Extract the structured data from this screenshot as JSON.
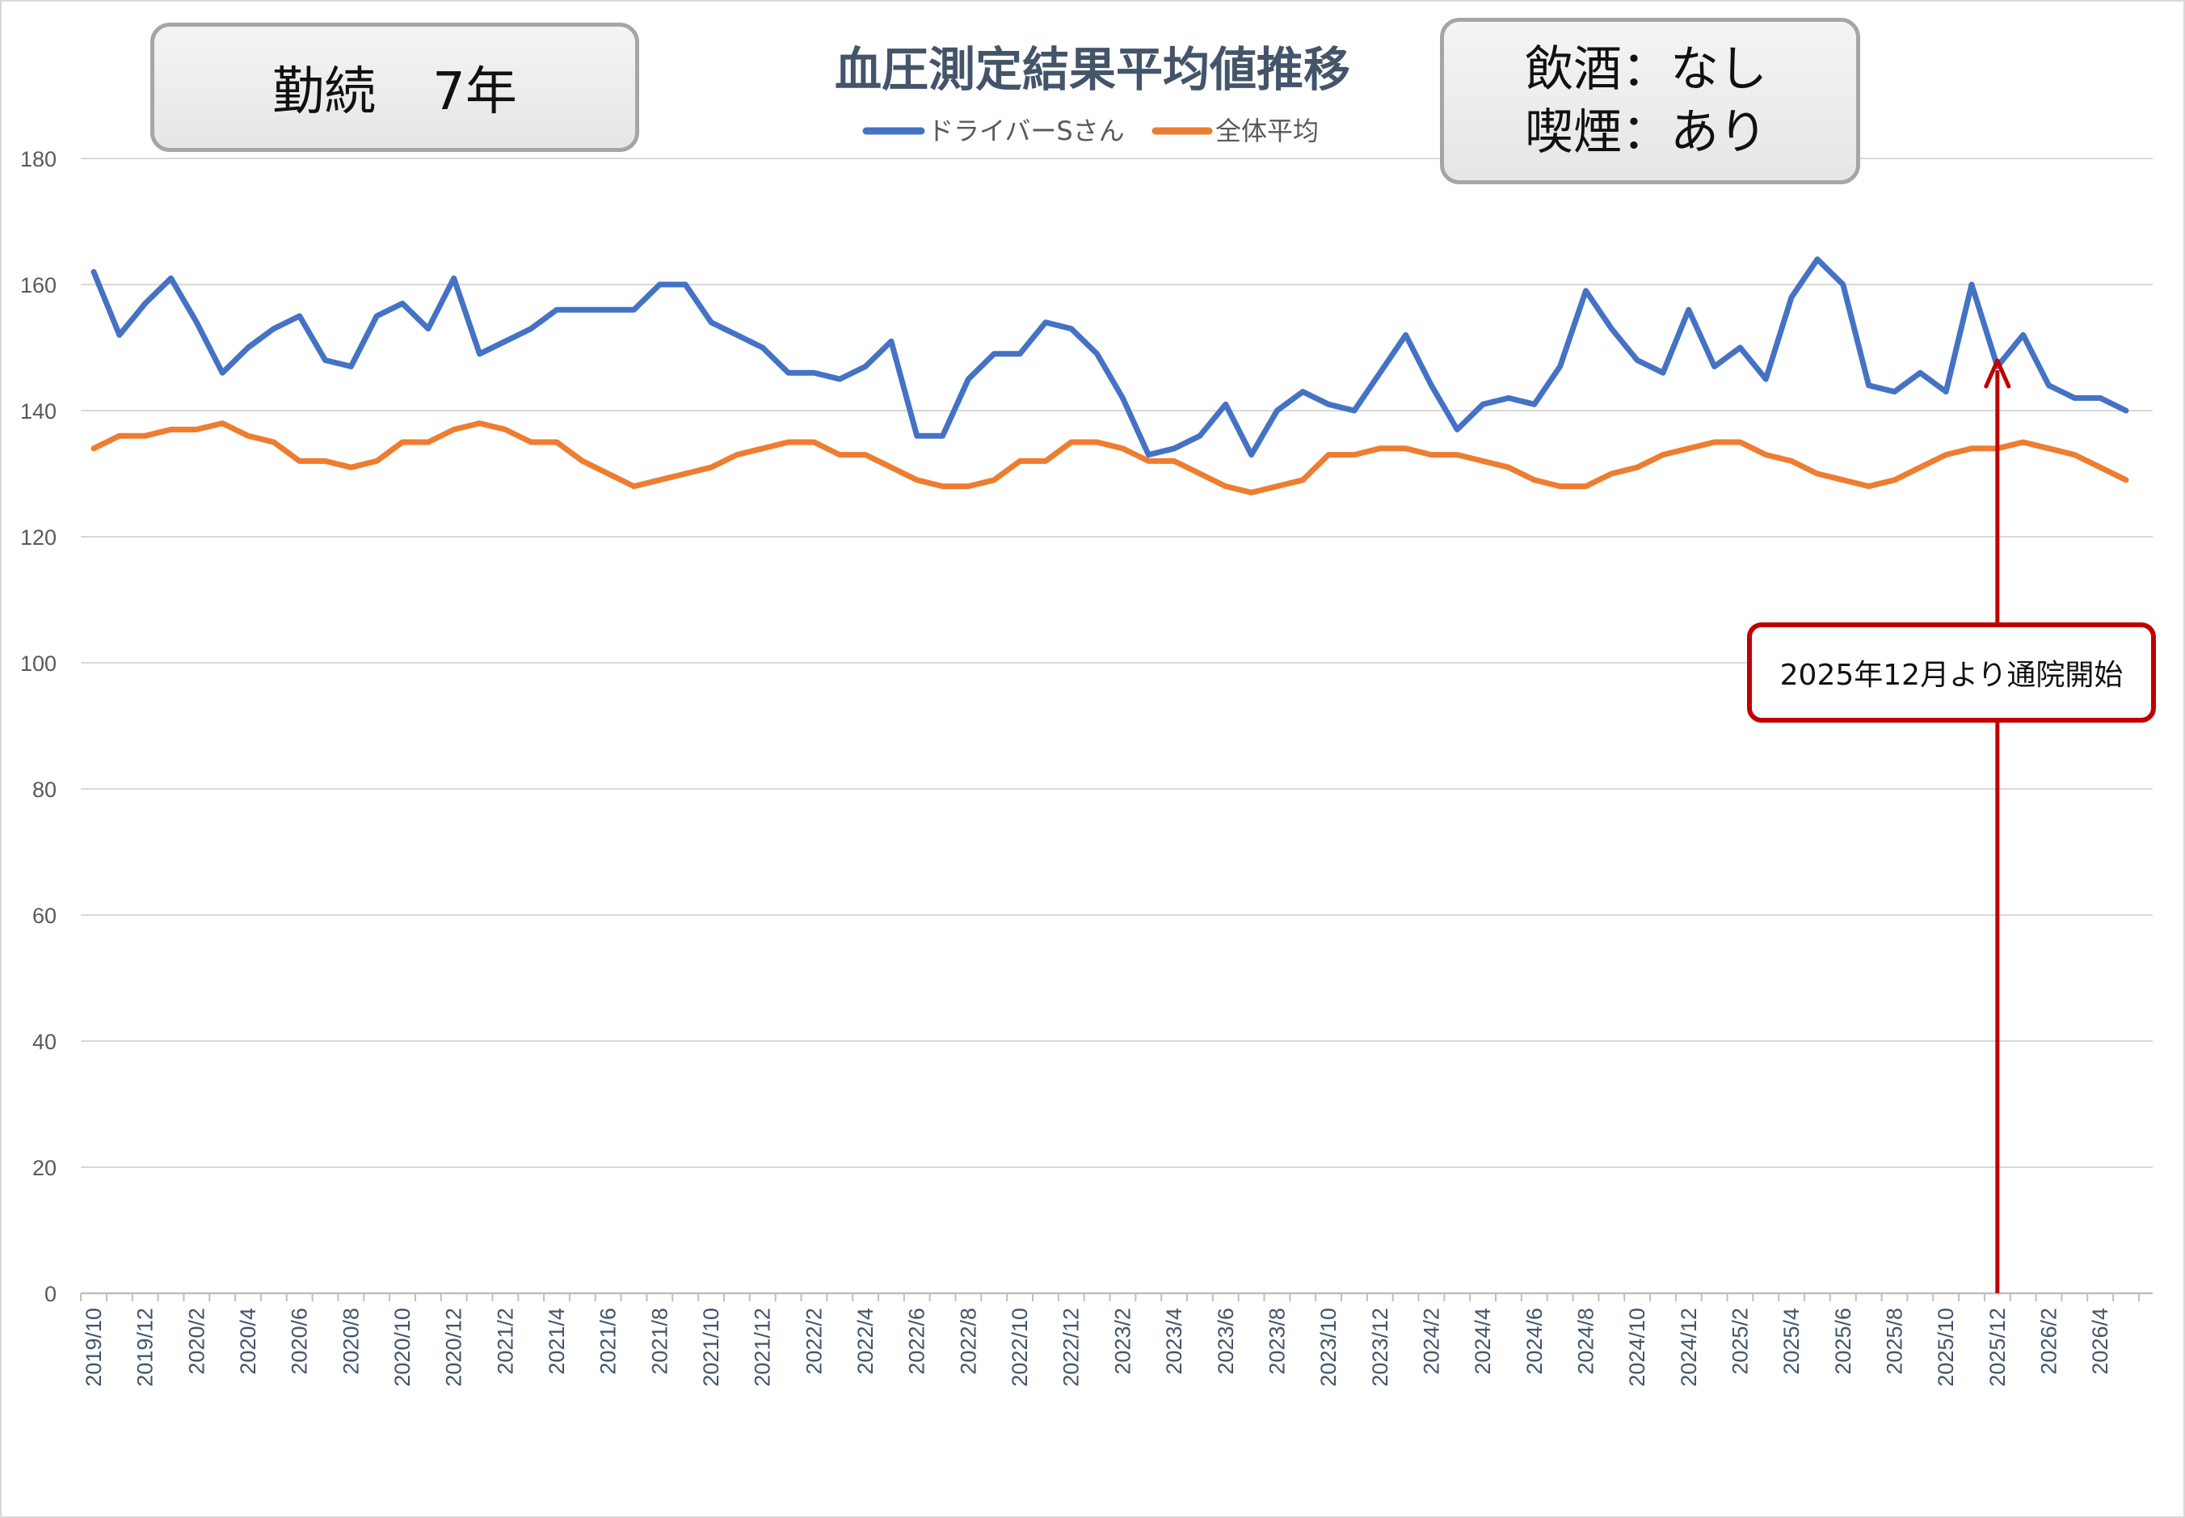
{
  "tenure": {
    "label": "勤続",
    "value": "7年"
  },
  "lifestyle": {
    "drinking": "飲酒：なし",
    "smoking": "喫煙：あり"
  },
  "annotation": {
    "text": "2025年12月より通院開始",
    "month": "2025/12",
    "color": "#c00000"
  },
  "chart_data": {
    "type": "line",
    "title": "血圧測定結果平均値推移",
    "xlabel": "",
    "ylabel": "",
    "ylim": [
      0,
      180
    ],
    "yticks": [
      0,
      20,
      40,
      60,
      80,
      100,
      120,
      140,
      160,
      180
    ],
    "grid": true,
    "legend_position": "top-center",
    "x": [
      "2019/10",
      "2019/11",
      "2019/12",
      "2020/1",
      "2020/2",
      "2020/3",
      "2020/4",
      "2020/5",
      "2020/6",
      "2020/7",
      "2020/8",
      "2020/9",
      "2020/10",
      "2020/11",
      "2020/12",
      "2021/1",
      "2021/2",
      "2021/3",
      "2021/4",
      "2021/5",
      "2021/6",
      "2021/7",
      "2021/8",
      "2021/9",
      "2021/10",
      "2021/11",
      "2021/12",
      "2022/1",
      "2022/2",
      "2022/3",
      "2022/4",
      "2022/5",
      "2022/6",
      "2022/7",
      "2022/8",
      "2022/9",
      "2022/10",
      "2022/11",
      "2022/12",
      "2023/1",
      "2023/2",
      "2023/3",
      "2023/4",
      "2023/5",
      "2023/6",
      "2023/7",
      "2023/8",
      "2023/9",
      "2023/10",
      "2023/11",
      "2023/12",
      "2024/1",
      "2024/2",
      "2024/3",
      "2024/4",
      "2024/5",
      "2024/6",
      "2024/7",
      "2024/8",
      "2024/9",
      "2024/10",
      "2024/11",
      "2024/12",
      "2025/1",
      "2025/2",
      "2025/3",
      "2025/4",
      "2025/5",
      "2025/6",
      "2025/7",
      "2025/8",
      "2025/9",
      "2025/10",
      "2025/11",
      "2025/12",
      "2026/1",
      "2026/2",
      "2026/3",
      "2026/4",
      "2026/5"
    ],
    "x_tick_labels": [
      "2019/10",
      "2019/12",
      "2020/2",
      "2020/4",
      "2020/6",
      "2020/8",
      "2020/10",
      "2020/12",
      "2021/2",
      "2021/4",
      "2021/6",
      "2021/8",
      "2021/10",
      "2021/12",
      "2022/2",
      "2022/4",
      "2022/6",
      "2022/8",
      "2022/10",
      "2022/12",
      "2023/2",
      "2023/4",
      "2023/6",
      "2023/8",
      "2023/10",
      "2023/12",
      "2024/2",
      "2024/4",
      "2024/6",
      "2024/8",
      "2024/10",
      "2024/12",
      "2025/2",
      "2025/4",
      "2025/6",
      "2025/8",
      "2025/10",
      "2025/12",
      "2026/2",
      "2026/4"
    ],
    "series": [
      {
        "name": "ドライバーSさん",
        "color": "#4472c4",
        "values": [
          162,
          152,
          157,
          161,
          154,
          146,
          150,
          153,
          155,
          148,
          147,
          155,
          157,
          153,
          161,
          149,
          151,
          153,
          156,
          156,
          156,
          156,
          160,
          160,
          154,
          152,
          150,
          146,
          146,
          145,
          147,
          151,
          136,
          136,
          145,
          149,
          149,
          154,
          153,
          149,
          142,
          133,
          134,
          136,
          141,
          133,
          140,
          143,
          141,
          140,
          146,
          152,
          144,
          137,
          141,
          142,
          141,
          147,
          159,
          153,
          148,
          146,
          156,
          147,
          150,
          145,
          158,
          164,
          160,
          144,
          143,
          146,
          143,
          160,
          147,
          152,
          144,
          142,
          142,
          140
        ]
      },
      {
        "name": "全体平均",
        "color": "#ed7d31",
        "values": [
          134,
          136,
          136,
          137,
          137,
          138,
          136,
          135,
          132,
          132,
          131,
          132,
          135,
          135,
          137,
          138,
          137,
          135,
          135,
          132,
          130,
          128,
          129,
          130,
          131,
          133,
          134,
          135,
          135,
          133,
          133,
          131,
          129,
          128,
          128,
          129,
          132,
          132,
          135,
          135,
          134,
          132,
          132,
          130,
          128,
          127,
          128,
          129,
          133,
          133,
          134,
          134,
          133,
          133,
          132,
          131,
          129,
          128,
          128,
          130,
          131,
          133,
          134,
          135,
          135,
          133,
          132,
          130,
          129,
          128,
          129,
          131,
          133,
          134,
          134,
          135,
          134,
          133,
          131,
          129
        ]
      }
    ]
  }
}
